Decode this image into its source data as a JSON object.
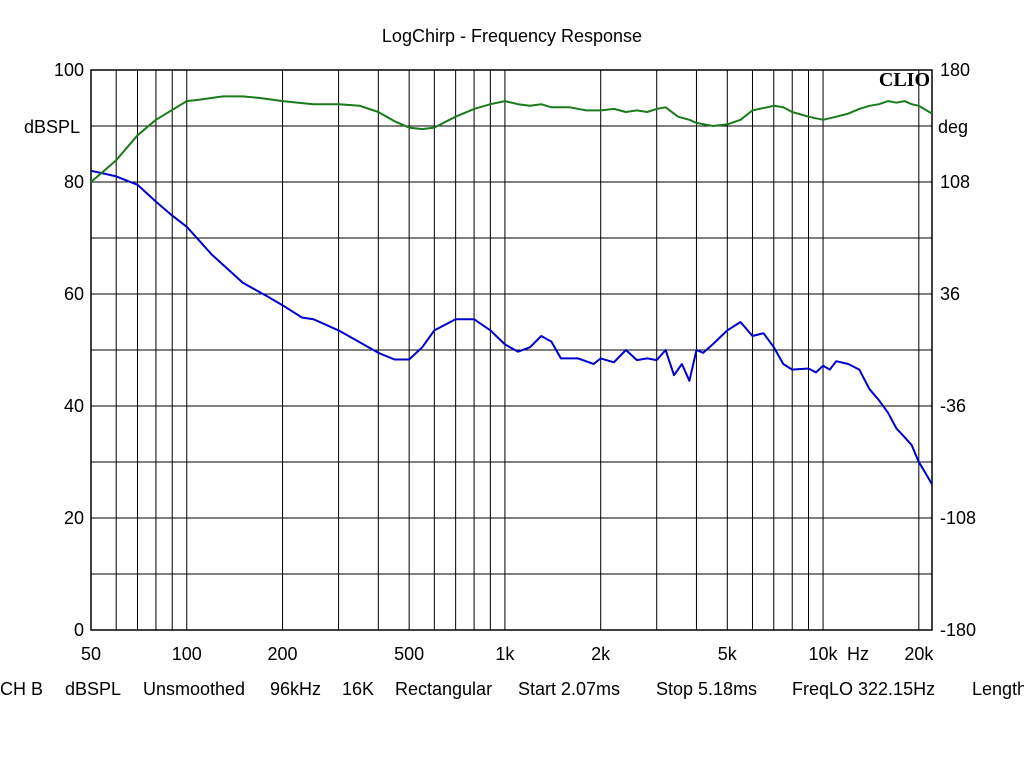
{
  "chart_data": {
    "type": "line",
    "title": "LogChirp - Frequency Response",
    "brand": "CLIO",
    "x_axis": {
      "scale": "log",
      "unit": "Hz",
      "range": [
        50,
        22000
      ],
      "tick_values": [
        50,
        100,
        200,
        500,
        1000,
        2000,
        5000,
        10000,
        20000
      ],
      "tick_labels": [
        "50",
        "100",
        "200",
        "500",
        "1k",
        "2k",
        "5k",
        "10k",
        "20k"
      ]
    },
    "y_left": {
      "label": "dBSPL",
      "range": [
        0,
        100
      ],
      "tick_values": [
        0,
        20,
        40,
        60,
        80,
        100
      ],
      "tick_labels": [
        "0",
        "20",
        "40",
        "60",
        "80",
        "100"
      ]
    },
    "y_right": {
      "label": "deg",
      "range": [
        -180,
        180
      ],
      "tick_values": [
        -180,
        -108,
        -36,
        36,
        108,
        180
      ],
      "tick_labels": [
        "-180",
        "-108",
        "-36",
        "36",
        "108",
        "180"
      ]
    },
    "grid": true,
    "series": [
      {
        "axis": "left",
        "color": "#0000cc",
        "x": [
          50,
          55,
          60,
          70,
          80,
          90,
          100,
          120,
          150,
          180,
          200,
          230,
          250,
          300,
          400,
          450,
          500,
          550,
          600,
          700,
          800,
          900,
          1000,
          1100,
          1200,
          1300,
          1400,
          1500,
          1700,
          1900,
          2000,
          2200,
          2400,
          2600,
          2800,
          3000,
          3200,
          3400,
          3600,
          3800,
          4000,
          4200,
          4500,
          5000,
          5500,
          6000,
          6500,
          7000,
          7500,
          8000,
          9000,
          9500,
          10000,
          10500,
          11000,
          12000,
          13000,
          14000,
          15000,
          16000,
          17000,
          18000,
          19000,
          20000,
          21000,
          22000
        ],
        "y": [
          82,
          81.5,
          81,
          79.5,
          76.5,
          74,
          72,
          67,
          62,
          59.5,
          58,
          55.8,
          55.5,
          53.5,
          49.5,
          48.3,
          48.3,
          50.5,
          53.5,
          55.5,
          55.5,
          53.5,
          51,
          49.7,
          50.5,
          52.5,
          51.5,
          48.5,
          48.5,
          47.5,
          48.5,
          47.8,
          50,
          48.2,
          48.5,
          48.2,
          50,
          45.5,
          47.5,
          44.5,
          50,
          49.5,
          51,
          53.5,
          55,
          52.5,
          53,
          50.5,
          47.5,
          46.5,
          46.7,
          46,
          47.2,
          46.5,
          48,
          47.5,
          46.5,
          43,
          41,
          38.8,
          36,
          34.5,
          33,
          30,
          28,
          26
        ]
      },
      {
        "axis": "right",
        "color": "#1b7a1b",
        "x": [
          50,
          60,
          70,
          80,
          100,
          110,
          130,
          150,
          170,
          200,
          250,
          300,
          350,
          400,
          450,
          500,
          550,
          600,
          700,
          800,
          900,
          1000,
          1100,
          1200,
          1300,
          1400,
          1600,
          1800,
          2000,
          2200,
          2400,
          2600,
          2800,
          3000,
          3200,
          3500,
          3800,
          4000,
          4500,
          5000,
          5500,
          6000,
          7000,
          7500,
          8000,
          9000,
          10000,
          11000,
          12000,
          13000,
          14000,
          15000,
          16000,
          17000,
          18000,
          19000,
          20000,
          22000
        ],
        "y": [
          108,
          122,
          138,
          148,
          160,
          161,
          163,
          163,
          162,
          160,
          158,
          158,
          157,
          153,
          147,
          143,
          142,
          143,
          150,
          155,
          158,
          160,
          158,
          157,
          158,
          156,
          156,
          154,
          154,
          155,
          153,
          154,
          153,
          155,
          156,
          150,
          148,
          146,
          144,
          145,
          148,
          154,
          157,
          156,
          153,
          150,
          148,
          150,
          152,
          155,
          157,
          158,
          160,
          159,
          160,
          158,
          157,
          152
        ]
      }
    ],
    "status_items": [
      "CH B",
      "dBSPL",
      "Unsmoothed",
      "96kHz",
      "16K",
      "Rectangular",
      "Start 2.07ms",
      "Stop 5.18ms",
      "FreqLO 322.15Hz",
      "Length"
    ]
  }
}
